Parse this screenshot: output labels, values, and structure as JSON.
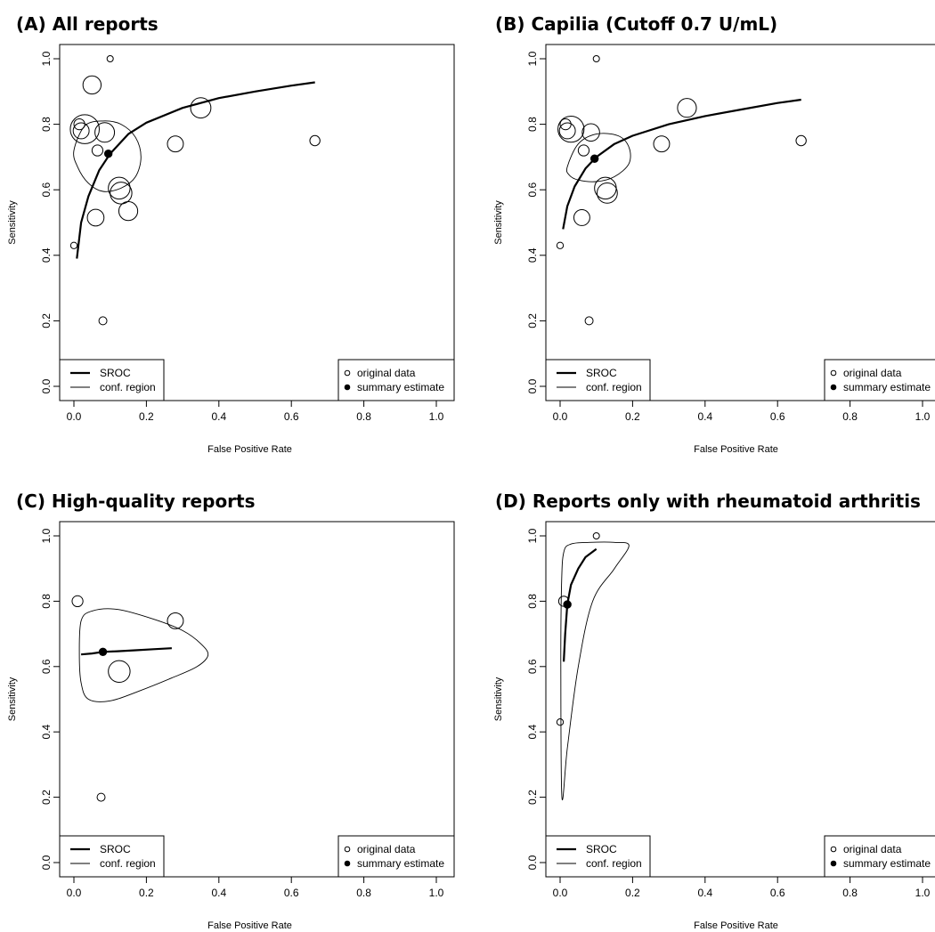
{
  "chart_data": [
    {
      "type": "scatter",
      "title": "(A) All reports",
      "xlabel": "False Positive Rate",
      "ylabel": "Sensitivity",
      "xlim": [
        0,
        1
      ],
      "ylim": [
        0,
        1
      ],
      "xticks": [
        "0.0",
        "0.2",
        "0.4",
        "0.6",
        "0.8",
        "1.0"
      ],
      "yticks": [
        "0.0",
        "0.2",
        "0.4",
        "0.6",
        "0.8",
        "1.0"
      ],
      "grid": false,
      "legends": [
        {
          "placement": "bottom-left",
          "entries": [
            "SROC",
            "conf. region"
          ]
        },
        {
          "placement": "bottom-right",
          "entries": [
            "original data",
            "summary estimate"
          ]
        }
      ],
      "original_data": [
        {
          "x": 0.0,
          "y": 0.43,
          "r": 0.009
        },
        {
          "x": 0.1,
          "y": 1.0,
          "r": 0.008
        },
        {
          "x": 0.05,
          "y": 0.92,
          "r": 0.025
        },
        {
          "x": 0.03,
          "y": 0.785,
          "r": 0.04
        },
        {
          "x": 0.015,
          "y": 0.8,
          "r": 0.015
        },
        {
          "x": 0.02,
          "y": 0.78,
          "r": 0.022
        },
        {
          "x": 0.085,
          "y": 0.775,
          "r": 0.027
        },
        {
          "x": 0.065,
          "y": 0.72,
          "r": 0.015
        },
        {
          "x": 0.06,
          "y": 0.515,
          "r": 0.023
        },
        {
          "x": 0.125,
          "y": 0.605,
          "r": 0.03
        },
        {
          "x": 0.13,
          "y": 0.59,
          "r": 0.03
        },
        {
          "x": 0.15,
          "y": 0.535,
          "r": 0.026
        },
        {
          "x": 0.28,
          "y": 0.74,
          "r": 0.022
        },
        {
          "x": 0.35,
          "y": 0.85,
          "r": 0.028
        },
        {
          "x": 0.665,
          "y": 0.75,
          "r": 0.014
        },
        {
          "x": 0.08,
          "y": 0.2,
          "r": 0.011
        }
      ],
      "summary_estimate": {
        "x": 0.095,
        "y": 0.71
      },
      "sroc": [
        [
          0.008,
          0.39
        ],
        [
          0.02,
          0.5
        ],
        [
          0.04,
          0.58
        ],
        [
          0.07,
          0.66
        ],
        [
          0.1,
          0.71
        ],
        [
          0.15,
          0.77
        ],
        [
          0.2,
          0.805
        ],
        [
          0.3,
          0.85
        ],
        [
          0.4,
          0.88
        ],
        [
          0.5,
          0.9
        ],
        [
          0.6,
          0.918
        ],
        [
          0.665,
          0.928
        ]
      ],
      "conf_region": [
        [
          0.0,
          0.72
        ],
        [
          0.03,
          0.795
        ],
        [
          0.08,
          0.81
        ],
        [
          0.13,
          0.8
        ],
        [
          0.17,
          0.76
        ],
        [
          0.185,
          0.7
        ],
        [
          0.17,
          0.64
        ],
        [
          0.13,
          0.605
        ],
        [
          0.08,
          0.595
        ],
        [
          0.04,
          0.62
        ],
        [
          0.01,
          0.67
        ]
      ]
    },
    {
      "type": "scatter",
      "title": "(B) Capilia (Cutoff 0.7 U/mL)",
      "xlabel": "False Positive Rate",
      "ylabel": "Sensitivity",
      "xlim": [
        0,
        1
      ],
      "ylim": [
        0,
        1
      ],
      "xticks": [
        "0.0",
        "0.2",
        "0.4",
        "0.6",
        "0.8",
        "1.0"
      ],
      "yticks": [
        "0.0",
        "0.2",
        "0.4",
        "0.6",
        "0.8",
        "1.0"
      ],
      "grid": false,
      "legends": [
        {
          "placement": "bottom-left",
          "entries": [
            "SROC",
            "conf. region"
          ]
        },
        {
          "placement": "bottom-right",
          "entries": [
            "original data",
            "summary estimate"
          ]
        }
      ],
      "original_data": [
        {
          "x": 0.0,
          "y": 0.43,
          "r": 0.009
        },
        {
          "x": 0.1,
          "y": 1.0,
          "r": 0.008
        },
        {
          "x": 0.03,
          "y": 0.785,
          "r": 0.036
        },
        {
          "x": 0.015,
          "y": 0.8,
          "r": 0.015
        },
        {
          "x": 0.02,
          "y": 0.78,
          "r": 0.022
        },
        {
          "x": 0.085,
          "y": 0.775,
          "r": 0.024
        },
        {
          "x": 0.065,
          "y": 0.72,
          "r": 0.015
        },
        {
          "x": 0.06,
          "y": 0.515,
          "r": 0.022
        },
        {
          "x": 0.125,
          "y": 0.605,
          "r": 0.03
        },
        {
          "x": 0.13,
          "y": 0.59,
          "r": 0.028
        },
        {
          "x": 0.28,
          "y": 0.74,
          "r": 0.022
        },
        {
          "x": 0.35,
          "y": 0.85,
          "r": 0.026
        },
        {
          "x": 0.665,
          "y": 0.75,
          "r": 0.014
        },
        {
          "x": 0.08,
          "y": 0.2,
          "r": 0.011
        }
      ],
      "summary_estimate": {
        "x": 0.095,
        "y": 0.695
      },
      "sroc": [
        [
          0.008,
          0.48
        ],
        [
          0.02,
          0.55
        ],
        [
          0.04,
          0.61
        ],
        [
          0.07,
          0.665
        ],
        [
          0.1,
          0.7
        ],
        [
          0.15,
          0.74
        ],
        [
          0.2,
          0.765
        ],
        [
          0.3,
          0.8
        ],
        [
          0.4,
          0.825
        ],
        [
          0.5,
          0.845
        ],
        [
          0.6,
          0.865
        ],
        [
          0.665,
          0.875
        ]
      ],
      "conf_region": [
        [
          0.02,
          0.67
        ],
        [
          0.05,
          0.74
        ],
        [
          0.1,
          0.77
        ],
        [
          0.16,
          0.765
        ],
        [
          0.19,
          0.73
        ],
        [
          0.19,
          0.68
        ],
        [
          0.15,
          0.64
        ],
        [
          0.1,
          0.625
        ],
        [
          0.05,
          0.63
        ],
        [
          0.025,
          0.645
        ]
      ]
    },
    {
      "type": "scatter",
      "title": "(C) High-quality reports",
      "xlabel": "False Positive Rate",
      "ylabel": "Sensitivity",
      "xlim": [
        0,
        1
      ],
      "ylim": [
        0,
        1
      ],
      "xticks": [
        "0.0",
        "0.2",
        "0.4",
        "0.6",
        "0.8",
        "1.0"
      ],
      "yticks": [
        "0.0",
        "0.2",
        "0.4",
        "0.6",
        "0.8",
        "1.0"
      ],
      "grid": false,
      "legends": [
        {
          "placement": "bottom-left",
          "entries": [
            "SROC",
            "conf. region"
          ]
        },
        {
          "placement": "bottom-right",
          "entries": [
            "original data",
            "summary estimate"
          ]
        }
      ],
      "original_data": [
        {
          "x": 0.01,
          "y": 0.8,
          "r": 0.015
        },
        {
          "x": 0.28,
          "y": 0.74,
          "r": 0.022
        },
        {
          "x": 0.125,
          "y": 0.585,
          "r": 0.03
        },
        {
          "x": 0.075,
          "y": 0.2,
          "r": 0.011
        }
      ],
      "summary_estimate": {
        "x": 0.08,
        "y": 0.645
      },
      "sroc": [
        [
          0.02,
          0.637
        ],
        [
          0.05,
          0.64
        ],
        [
          0.08,
          0.645
        ],
        [
          0.12,
          0.647
        ],
        [
          0.17,
          0.65
        ],
        [
          0.22,
          0.653
        ],
        [
          0.27,
          0.656
        ]
      ],
      "conf_region": [
        [
          0.02,
          0.74
        ],
        [
          0.05,
          0.77
        ],
        [
          0.12,
          0.775
        ],
        [
          0.22,
          0.745
        ],
        [
          0.3,
          0.71
        ],
        [
          0.35,
          0.67
        ],
        [
          0.37,
          0.635
        ],
        [
          0.34,
          0.6
        ],
        [
          0.27,
          0.565
        ],
        [
          0.18,
          0.525
        ],
        [
          0.1,
          0.495
        ],
        [
          0.04,
          0.5
        ],
        [
          0.02,
          0.55
        ],
        [
          0.015,
          0.64
        ]
      ]
    },
    {
      "type": "scatter",
      "title": "(D) Reports only with rheumatoid arthritis",
      "xlabel": "False Positive Rate",
      "ylabel": "Sensitivity",
      "xlim": [
        0,
        1
      ],
      "ylim": [
        0,
        1
      ],
      "xticks": [
        "0.0",
        "0.2",
        "0.4",
        "0.6",
        "0.8",
        "1.0"
      ],
      "yticks": [
        "0.0",
        "0.2",
        "0.4",
        "0.6",
        "0.8",
        "1.0"
      ],
      "grid": false,
      "legends": [
        {
          "placement": "bottom-left",
          "entries": [
            "SROC",
            "conf. region"
          ]
        },
        {
          "placement": "bottom-right",
          "entries": [
            "original data",
            "summary estimate"
          ]
        }
      ],
      "original_data": [
        {
          "x": 0.0,
          "y": 0.43,
          "r": 0.009
        },
        {
          "x": 0.1,
          "y": 1.0,
          "r": 0.008
        },
        {
          "x": 0.01,
          "y": 0.8,
          "r": 0.014
        }
      ],
      "summary_estimate": {
        "x": 0.02,
        "y": 0.79
      },
      "sroc": [
        [
          0.01,
          0.615
        ],
        [
          0.014,
          0.7
        ],
        [
          0.02,
          0.79
        ],
        [
          0.03,
          0.85
        ],
        [
          0.05,
          0.9
        ],
        [
          0.07,
          0.935
        ],
        [
          0.1,
          0.96
        ]
      ],
      "conf_region": [
        [
          0.005,
          0.2
        ],
        [
          0.002,
          0.6
        ],
        [
          0.004,
          0.85
        ],
        [
          0.01,
          0.95
        ],
        [
          0.03,
          0.975
        ],
        [
          0.08,
          0.98
        ],
        [
          0.15,
          0.98
        ],
        [
          0.19,
          0.97
        ],
        [
          0.15,
          0.9
        ],
        [
          0.09,
          0.8
        ],
        [
          0.05,
          0.6
        ],
        [
          0.02,
          0.35
        ]
      ]
    }
  ]
}
